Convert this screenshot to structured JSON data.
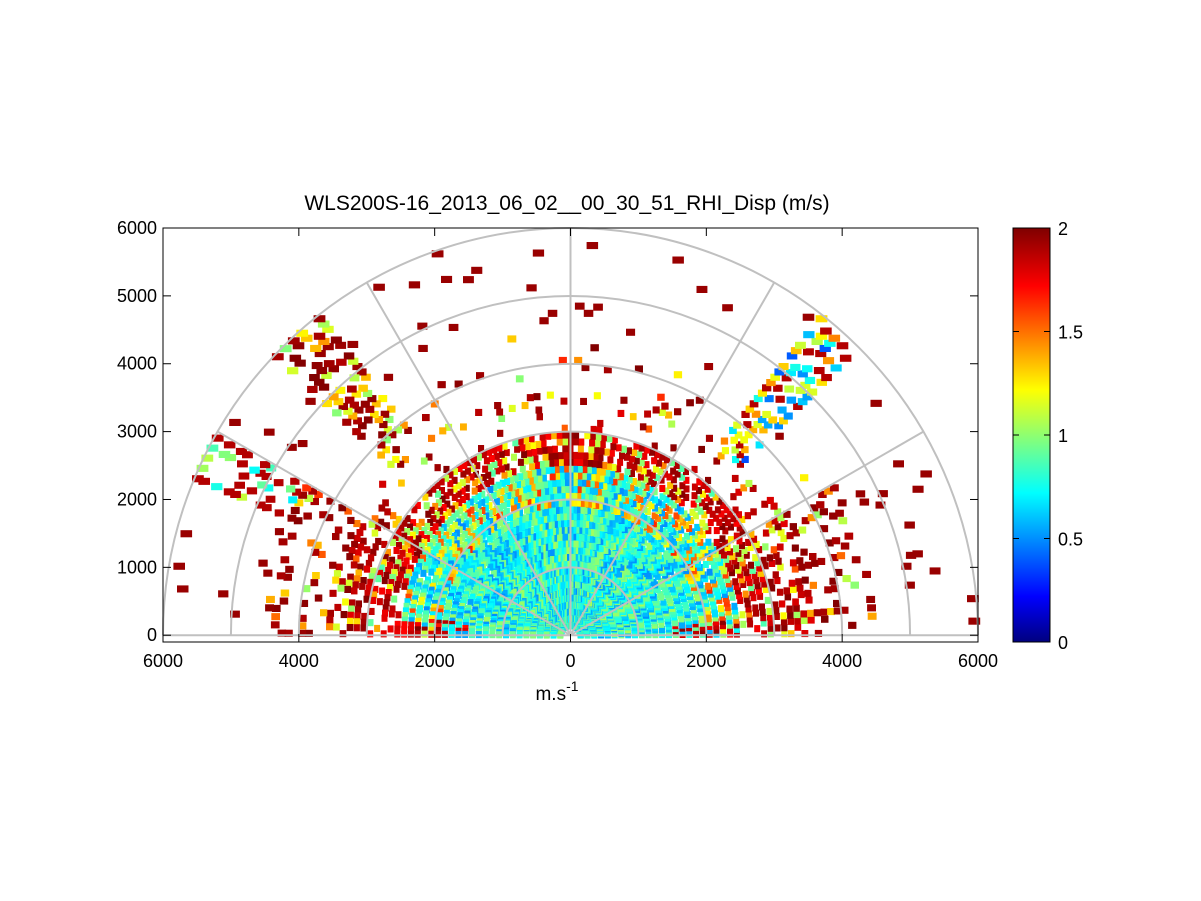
{
  "chart_data": {
    "type": "heatmap",
    "projection": "polar-rhi",
    "title": "WLS200S-16_2013_06_02__00_30_51_RHI_Disp (m/s)",
    "xlabel": "m.s",
    "xlabel_superscript": "-1",
    "ylabel": "",
    "xlim": [
      -6000,
      6000
    ],
    "ylim": [
      -100,
      6000
    ],
    "x_ticks": [
      -6000,
      -4000,
      -2000,
      0,
      2000,
      4000,
      6000
    ],
    "x_tick_labels": [
      "6000",
      "4000",
      "2000",
      "0",
      "2000",
      "4000",
      "6000"
    ],
    "y_ticks": [
      0,
      1000,
      2000,
      3000,
      4000,
      5000,
      6000
    ],
    "y_tick_labels": [
      "0",
      "1000",
      "2000",
      "3000",
      "4000",
      "5000",
      "6000"
    ],
    "polar_grid": {
      "range_rings": [
        1000,
        2000,
        3000,
        4000,
        5000,
        6000
      ],
      "radial_spokes_deg": [
        0,
        30,
        60,
        90,
        120,
        150,
        180
      ]
    },
    "colorbar": {
      "colormap": "jet",
      "min": 0,
      "max": 2,
      "ticks": [
        0,
        0.5,
        1,
        1.5,
        2
      ],
      "tick_labels": [
        "0",
        "0.5",
        "1",
        "1.5",
        "2"
      ]
    },
    "approx_value_regions": [
      {
        "range_m": [
          0,
          2500
        ],
        "elevation_deg": [
          0,
          180
        ],
        "value": 0.85,
        "description": "dense near-field returns around 0.7-1.0"
      },
      {
        "range_m": [
          2500,
          3000
        ],
        "elevation_deg": [
          30,
          150
        ],
        "value": 1.9,
        "description": "band of high dispersion near 2000-3000 m height"
      },
      {
        "range_m": [
          2500,
          3500
        ],
        "elevation_deg": [
          120,
          175
        ],
        "value": 1.8,
        "description": "west-side high values"
      },
      {
        "range_m": [
          2500,
          3500
        ],
        "elevation_deg": [
          5,
          60
        ],
        "value": 1.7,
        "description": "east-side high values"
      },
      {
        "range_m": [
          3500,
          6000
        ],
        "elevation_deg": [
          20,
          160
        ],
        "value": 1.6,
        "description": "sparse scattered far-range gates"
      },
      {
        "range_m": [
          4000,
          6000
        ],
        "elevation_deg": [
          40,
          55
        ],
        "value": 1.1,
        "description": "eastern spoke streak of mixed values"
      },
      {
        "range_m": [
          4000,
          6000
        ],
        "elevation_deg": [
          125,
          140
        ],
        "value": 1.7,
        "description": "western spoke streak of high values"
      }
    ]
  }
}
